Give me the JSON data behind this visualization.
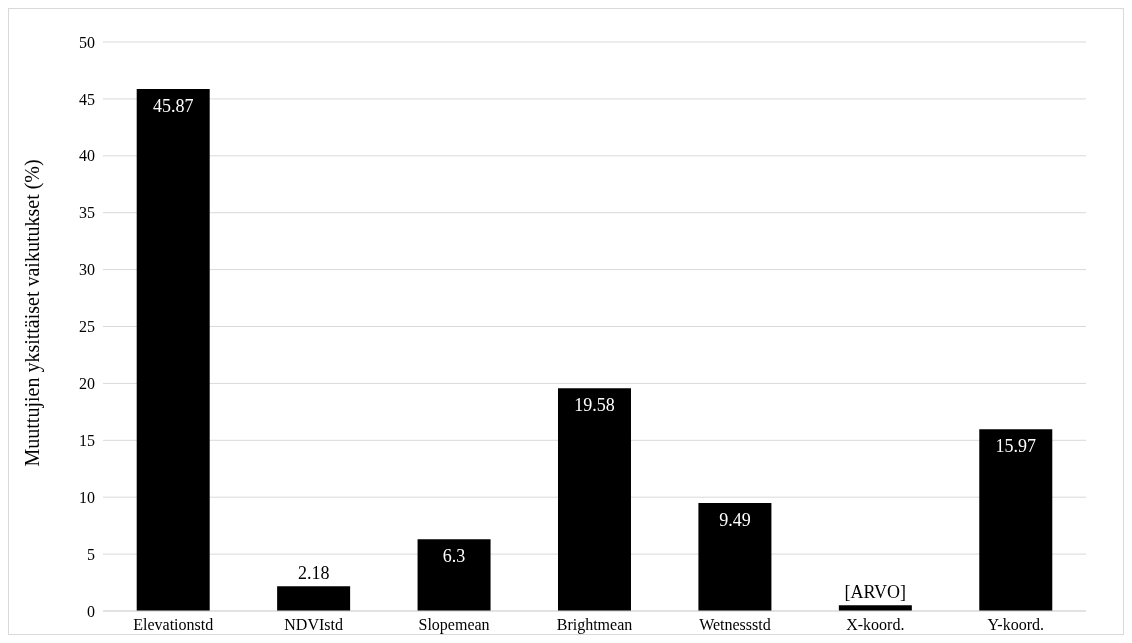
{
  "chart_data": {
    "type": "bar",
    "ylabel": "Muuttujien yksittäiset vaikutukset (%)",
    "categories": [
      "Elevationstd",
      "NDVIstd",
      "Slopemean",
      "Brightmean",
      "Wetnessstd",
      "X-koord.",
      "Y-koord."
    ],
    "values": [
      45.87,
      2.18,
      6.3,
      19.58,
      9.49,
      0.5,
      15.97
    ],
    "value_labels": [
      "45.87",
      "2.18",
      "6.3",
      "19.58",
      "9.49",
      "[ARVO]",
      "15.97"
    ],
    "color": "#000000",
    "ylim": [
      0,
      50
    ],
    "yticks": [
      0,
      5,
      10,
      15,
      20,
      25,
      30,
      35,
      40,
      45,
      50
    ],
    "grid": "y",
    "legend": false
  }
}
